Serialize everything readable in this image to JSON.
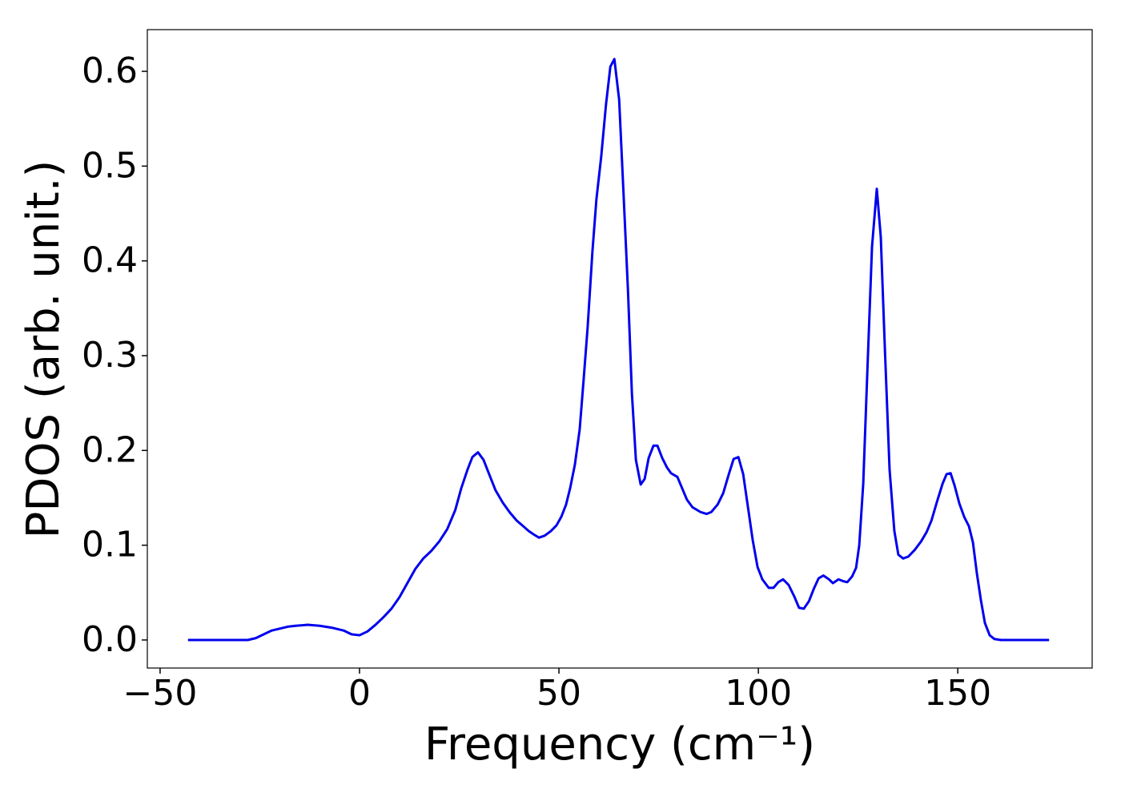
{
  "chart_data": {
    "type": "line",
    "xlabel": "Frequency (cm⁻¹)",
    "ylabel": "PDOS (arb. unit.)",
    "xlim": [
      -53.2,
      183.7
    ],
    "ylim": [
      -0.0296,
      0.644
    ],
    "xticks": [
      {
        "value": -50,
        "label": "−50"
      },
      0,
      50,
      100,
      150
    ],
    "yticks": [
      {
        "value": 0,
        "label": "0.0"
      },
      0.1,
      0.2,
      0.3,
      0.4,
      0.5,
      0.6
    ],
    "series": [
      {
        "color": "#0000ee",
        "x": [
          -43,
          -28,
          -26,
          -24,
          -22,
          -20,
          -18,
          -16,
          -13,
          -10,
          -7,
          -4,
          -2,
          0,
          2,
          4,
          6,
          8,
          10,
          12,
          14,
          16,
          18,
          20,
          22,
          24,
          25.5,
          27.1,
          28.3,
          29.7,
          31.1,
          32.5,
          34.1,
          35.9,
          37.6,
          39.4,
          40.8,
          42.4,
          43.8,
          45,
          46.4,
          48,
          49.4,
          50.6,
          51.8,
          52.8,
          54,
          55.2,
          56.2,
          57.2,
          58.4,
          59.4,
          60.6,
          61.8,
          62.9,
          63.9,
          65.1,
          66.1,
          67.3,
          68.3,
          69.3,
          70.5,
          71.5,
          72.5,
          73.7,
          74.7,
          75.9,
          77.1,
          78.1,
          79.7,
          80.9,
          82.1,
          83.5,
          85.5,
          87,
          88.2,
          89.8,
          91.2,
          92.6,
          93.8,
          95,
          96.2,
          97.4,
          98.6,
          99.8,
          101,
          102.6,
          103.8,
          105,
          106.2,
          107.6,
          109,
          110.2,
          111.4,
          112.7,
          113.9,
          115.1,
          116.3,
          117.7,
          118.7,
          120.1,
          121.3,
          122.3,
          123.5,
          124.5,
          125.3,
          126.3,
          127.3,
          128.5,
          129.7,
          130.7,
          131.7,
          132.9,
          134.1,
          135.1,
          136.3,
          137.6,
          139.2,
          140.8,
          142.2,
          143.4,
          144.8,
          146.2,
          147.2,
          148.2,
          149.2,
          150.4,
          151.6,
          152.8,
          153.8,
          154.8,
          155.8,
          156.8,
          158,
          159.2,
          160.8,
          172.9
        ],
        "values": [
          0,
          0,
          0.002,
          0.006,
          0.01,
          0.012,
          0.014,
          0.015,
          0.016,
          0.015,
          0.013,
          0.01,
          0.006,
          0.005,
          0.009,
          0.016,
          0.024,
          0.033,
          0.045,
          0.06,
          0.075,
          0.086,
          0.094,
          0.104,
          0.117,
          0.137,
          0.16,
          0.18,
          0.193,
          0.198,
          0.19,
          0.175,
          0.158,
          0.145,
          0.135,
          0.126,
          0.121,
          0.115,
          0.111,
          0.108,
          0.11,
          0.115,
          0.121,
          0.13,
          0.143,
          0.16,
          0.185,
          0.222,
          0.275,
          0.33,
          0.41,
          0.465,
          0.51,
          0.565,
          0.605,
          0.613,
          0.57,
          0.48,
          0.37,
          0.26,
          0.19,
          0.164,
          0.17,
          0.192,
          0.205,
          0.205,
          0.192,
          0.182,
          0.176,
          0.172,
          0.16,
          0.148,
          0.14,
          0.135,
          0.133,
          0.135,
          0.143,
          0.155,
          0.175,
          0.191,
          0.193,
          0.175,
          0.14,
          0.105,
          0.077,
          0.064,
          0.055,
          0.055,
          0.061,
          0.064,
          0.058,
          0.046,
          0.034,
          0.033,
          0.041,
          0.054,
          0.065,
          0.068,
          0.064,
          0.06,
          0.064,
          0.062,
          0.061,
          0.067,
          0.076,
          0.1,
          0.165,
          0.28,
          0.415,
          0.476,
          0.425,
          0.31,
          0.18,
          0.115,
          0.09,
          0.086,
          0.088,
          0.095,
          0.104,
          0.114,
          0.126,
          0.146,
          0.165,
          0.175,
          0.176,
          0.163,
          0.144,
          0.13,
          0.12,
          0.103,
          0.07,
          0.042,
          0.018,
          0.005,
          0.001,
          0,
          0
        ]
      }
    ]
  }
}
